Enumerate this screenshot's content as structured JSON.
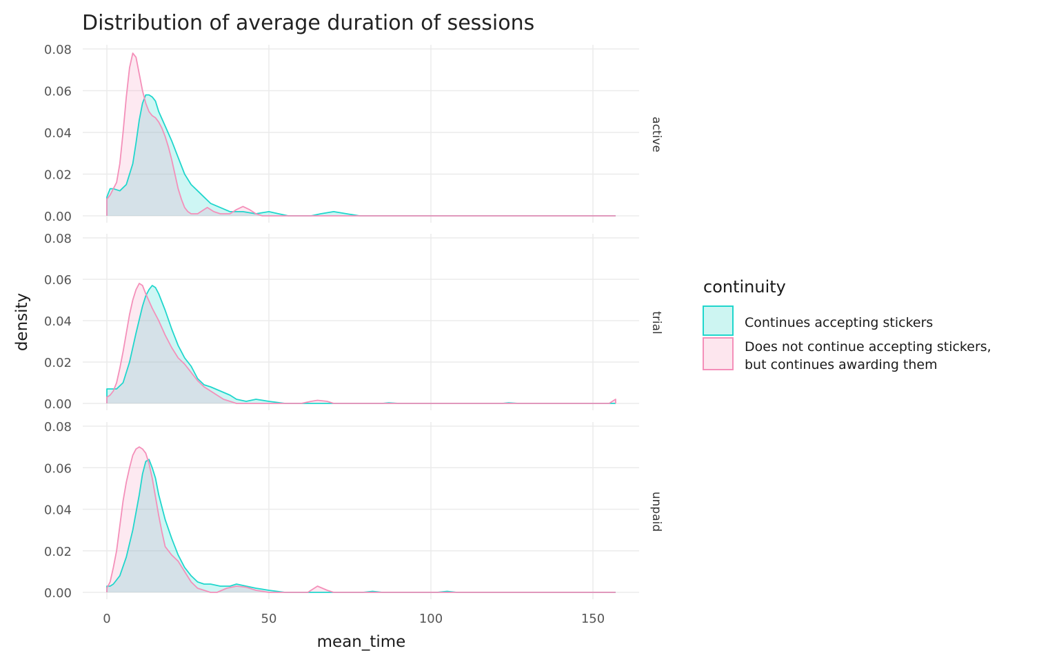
{
  "chart_data": {
    "type": "area",
    "title": "Distribution of average duration of sessions",
    "xlabel": "mean_time",
    "ylabel": "density",
    "xlim": [
      0,
      157
    ],
    "ylim": [
      0,
      0.08
    ],
    "x_ticks": [
      "0",
      "50",
      "100",
      "150"
    ],
    "y_ticks": [
      "0.00",
      "0.02",
      "0.04",
      "0.06",
      "0.08"
    ],
    "grid": true,
    "legend": {
      "title": "continuity",
      "position": "right",
      "entries": [
        {
          "label_lines": [
            "Continues accepting stickers"
          ],
          "color": "#1fd6cc",
          "fill": "#cdf5f2"
        },
        {
          "label_lines": [
            "Does not continue accepting stickers,",
            "but continues awarding them"
          ],
          "color": "#f48fb9",
          "fill": "#fde6ee"
        }
      ]
    },
    "facets": [
      {
        "label": "active",
        "series": [
          {
            "name": "Continues accepting stickers",
            "color": "#1fd6cc",
            "points": [
              [
                0,
                0.009
              ],
              [
                1,
                0.013
              ],
              [
                2,
                0.013
              ],
              [
                4,
                0.012
              ],
              [
                6,
                0.015
              ],
              [
                8,
                0.025
              ],
              [
                9,
                0.035
              ],
              [
                10,
                0.046
              ],
              [
                11,
                0.054
              ],
              [
                12,
                0.058
              ],
              [
                13,
                0.058
              ],
              [
                14,
                0.057
              ],
              [
                15,
                0.055
              ],
              [
                16,
                0.05
              ],
              [
                18,
                0.043
              ],
              [
                20,
                0.036
              ],
              [
                22,
                0.028
              ],
              [
                24,
                0.02
              ],
              [
                26,
                0.015
              ],
              [
                28,
                0.012
              ],
              [
                30,
                0.009
              ],
              [
                32,
                0.006
              ],
              [
                35,
                0.004
              ],
              [
                38,
                0.002
              ],
              [
                42,
                0.002
              ],
              [
                46,
                0.001
              ],
              [
                50,
                0.002
              ],
              [
                53,
                0.001
              ],
              [
                56,
                0.0
              ],
              [
                63,
                0.0
              ],
              [
                66,
                0.001
              ],
              [
                70,
                0.002
              ],
              [
                74,
                0.001
              ],
              [
                78,
                0.0
              ],
              [
                157,
                0.0
              ]
            ]
          },
          {
            "name": "Does not continue accepting stickers, but continues awarding them",
            "color": "#f48fb9",
            "points": [
              [
                0,
                0.008
              ],
              [
                1,
                0.01
              ],
              [
                2,
                0.013
              ],
              [
                3,
                0.016
              ],
              [
                4,
                0.025
              ],
              [
                5,
                0.04
              ],
              [
                6,
                0.057
              ],
              [
                7,
                0.071
              ],
              [
                8,
                0.078
              ],
              [
                9,
                0.076
              ],
              [
                10,
                0.068
              ],
              [
                11,
                0.06
              ],
              [
                12,
                0.054
              ],
              [
                13,
                0.05
              ],
              [
                14,
                0.048
              ],
              [
                15,
                0.047
              ],
              [
                16,
                0.045
              ],
              [
                17,
                0.042
              ],
              [
                18,
                0.038
              ],
              [
                19,
                0.033
              ],
              [
                20,
                0.027
              ],
              [
                21,
                0.02
              ],
              [
                22,
                0.013
              ],
              [
                23,
                0.008
              ],
              [
                24,
                0.004
              ],
              [
                25,
                0.002
              ],
              [
                26,
                0.001
              ],
              [
                28,
                0.001
              ],
              [
                30,
                0.003
              ],
              [
                31,
                0.004
              ],
              [
                33,
                0.002
              ],
              [
                35,
                0.001
              ],
              [
                38,
                0.001
              ],
              [
                40,
                0.003
              ],
              [
                42,
                0.0045
              ],
              [
                44,
                0.003
              ],
              [
                46,
                0.001
              ],
              [
                48,
                0.0
              ],
              [
                157,
                0.0
              ]
            ]
          }
        ]
      },
      {
        "label": "trial",
        "series": [
          {
            "name": "Continues accepting stickers",
            "color": "#1fd6cc",
            "points": [
              [
                0,
                0.007
              ],
              [
                1,
                0.007
              ],
              [
                3,
                0.007
              ],
              [
                5,
                0.01
              ],
              [
                7,
                0.02
              ],
              [
                9,
                0.034
              ],
              [
                11,
                0.047
              ],
              [
                12,
                0.052
              ],
              [
                13,
                0.055
              ],
              [
                14,
                0.057
              ],
              [
                15,
                0.056
              ],
              [
                16,
                0.053
              ],
              [
                18,
                0.045
              ],
              [
                20,
                0.036
              ],
              [
                22,
                0.028
              ],
              [
                24,
                0.022
              ],
              [
                26,
                0.018
              ],
              [
                28,
                0.012
              ],
              [
                30,
                0.009
              ],
              [
                32,
                0.008
              ],
              [
                35,
                0.006
              ],
              [
                38,
                0.004
              ],
              [
                40,
                0.002
              ],
              [
                43,
                0.001
              ],
              [
                46,
                0.002
              ],
              [
                50,
                0.001
              ],
              [
                55,
                0.0
              ],
              [
                85,
                0.0
              ],
              [
                87,
                0.0003
              ],
              [
                90,
                0.0
              ],
              [
                122,
                0.0
              ],
              [
                124,
                0.0003
              ],
              [
                127,
                0.0
              ],
              [
                157,
                0.0
              ]
            ]
          },
          {
            "name": "Does not continue accepting stickers, but continues awarding them",
            "color": "#f48fb9",
            "points": [
              [
                0,
                0.003
              ],
              [
                1,
                0.004
              ],
              [
                2,
                0.006
              ],
              [
                3,
                0.01
              ],
              [
                4,
                0.017
              ],
              [
                5,
                0.025
              ],
              [
                6,
                0.034
              ],
              [
                7,
                0.043
              ],
              [
                8,
                0.05
              ],
              [
                9,
                0.055
              ],
              [
                10,
                0.058
              ],
              [
                11,
                0.057
              ],
              [
                12,
                0.053
              ],
              [
                14,
                0.046
              ],
              [
                16,
                0.04
              ],
              [
                18,
                0.033
              ],
              [
                20,
                0.027
              ],
              [
                22,
                0.022
              ],
              [
                24,
                0.019
              ],
              [
                26,
                0.015
              ],
              [
                28,
                0.011
              ],
              [
                30,
                0.008
              ],
              [
                32,
                0.006
              ],
              [
                34,
                0.004
              ],
              [
                36,
                0.002
              ],
              [
                38,
                0.001
              ],
              [
                40,
                0.0
              ],
              [
                60,
                0.0
              ],
              [
                63,
                0.001
              ],
              [
                65,
                0.0015
              ],
              [
                68,
                0.001
              ],
              [
                70,
                0.0
              ],
              [
                155,
                0.0
              ],
              [
                156,
                0.001
              ],
              [
                157,
                0.002
              ]
            ]
          }
        ]
      },
      {
        "label": "unpaid",
        "series": [
          {
            "name": "Continues accepting stickers",
            "color": "#1fd6cc",
            "points": [
              [
                0,
                0.003
              ],
              [
                1,
                0.003
              ],
              [
                2,
                0.004
              ],
              [
                4,
                0.008
              ],
              [
                6,
                0.017
              ],
              [
                8,
                0.03
              ],
              [
                10,
                0.047
              ],
              [
                11,
                0.057
              ],
              [
                12,
                0.063
              ],
              [
                13,
                0.064
              ],
              [
                14,
                0.06
              ],
              [
                15,
                0.055
              ],
              [
                16,
                0.047
              ],
              [
                18,
                0.035
              ],
              [
                20,
                0.026
              ],
              [
                22,
                0.018
              ],
              [
                24,
                0.012
              ],
              [
                26,
                0.008
              ],
              [
                28,
                0.005
              ],
              [
                30,
                0.004
              ],
              [
                32,
                0.004
              ],
              [
                35,
                0.003
              ],
              [
                38,
                0.003
              ],
              [
                40,
                0.004
              ],
              [
                43,
                0.003
              ],
              [
                46,
                0.002
              ],
              [
                50,
                0.001
              ],
              [
                55,
                0.0
              ],
              [
                79,
                0.0
              ],
              [
                82,
                0.0005
              ],
              [
                85,
                0.0
              ],
              [
                102,
                0.0
              ],
              [
                105,
                0.0005
              ],
              [
                108,
                0.0
              ],
              [
                157,
                0.0
              ]
            ]
          },
          {
            "name": "Does not continue accepting stickers, but continues awarding them",
            "color": "#f48fb9",
            "points": [
              [
                0,
                0.002
              ],
              [
                1,
                0.005
              ],
              [
                2,
                0.012
              ],
              [
                3,
                0.02
              ],
              [
                4,
                0.032
              ],
              [
                5,
                0.044
              ],
              [
                6,
                0.053
              ],
              [
                7,
                0.06
              ],
              [
                8,
                0.066
              ],
              [
                9,
                0.069
              ],
              [
                10,
                0.07
              ],
              [
                11,
                0.069
              ],
              [
                12,
                0.067
              ],
              [
                13,
                0.062
              ],
              [
                14,
                0.055
              ],
              [
                15,
                0.046
              ],
              [
                16,
                0.037
              ],
              [
                17,
                0.029
              ],
              [
                18,
                0.022
              ],
              [
                20,
                0.018
              ],
              [
                22,
                0.015
              ],
              [
                24,
                0.01
              ],
              [
                26,
                0.005
              ],
              [
                28,
                0.002
              ],
              [
                30,
                0.001
              ],
              [
                32,
                0.0
              ],
              [
                34,
                0.0
              ],
              [
                37,
                0.002
              ],
              [
                40,
                0.003
              ],
              [
                43,
                0.0025
              ],
              [
                46,
                0.001
              ],
              [
                50,
                0.0
              ],
              [
                62,
                0.0
              ],
              [
                65,
                0.003
              ],
              [
                68,
                0.001
              ],
              [
                70,
                0.0
              ],
              [
                157,
                0.0
              ]
            ]
          }
        ]
      }
    ]
  }
}
